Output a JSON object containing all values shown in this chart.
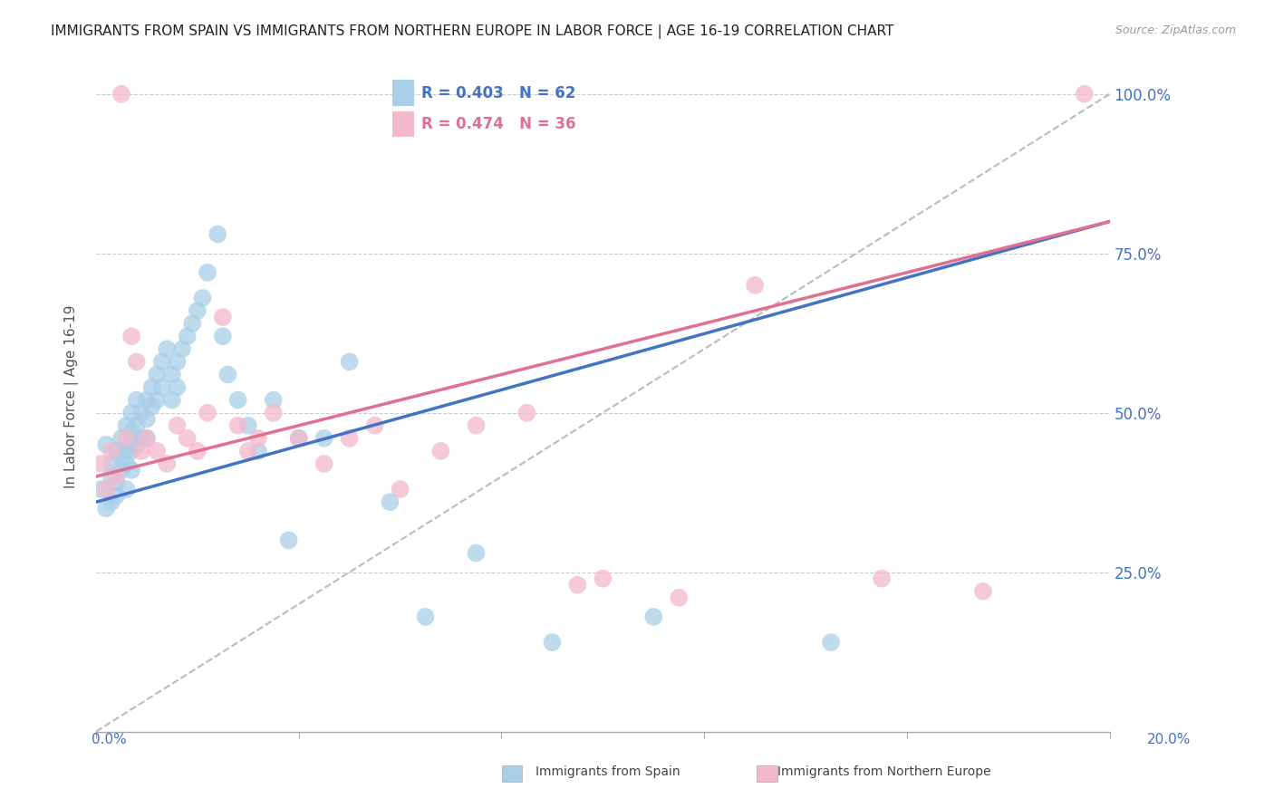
{
  "title": "IMMIGRANTS FROM SPAIN VS IMMIGRANTS FROM NORTHERN EUROPE IN LABOR FORCE | AGE 16-19 CORRELATION CHART",
  "source": "Source: ZipAtlas.com",
  "ylabel": "In Labor Force | Age 16-19",
  "legend_blue_r": "R = 0.403",
  "legend_blue_n": "N = 62",
  "legend_pink_r": "R = 0.474",
  "legend_pink_n": "N = 36",
  "legend_label_blue": "Immigrants from Spain",
  "legend_label_pink": "Immigrants from Northern Europe",
  "blue_color": "#a8cfe8",
  "pink_color": "#f4b8cb",
  "trend_blue": "#4472c4",
  "trend_pink": "#e07090",
  "dashed_gray": "#bbbbbb",
  "axis_color": "#4472c4",
  "background": "#ffffff",
  "xmin": 0.0,
  "xmax": 0.2,
  "ymin": 0.0,
  "ymax": 1.05,
  "blue_scatter_x": [
    0.001,
    0.002,
    0.002,
    0.003,
    0.003,
    0.003,
    0.004,
    0.004,
    0.004,
    0.005,
    0.005,
    0.005,
    0.006,
    0.006,
    0.006,
    0.006,
    0.007,
    0.007,
    0.007,
    0.007,
    0.008,
    0.008,
    0.008,
    0.009,
    0.009,
    0.01,
    0.01,
    0.01,
    0.011,
    0.011,
    0.012,
    0.012,
    0.013,
    0.013,
    0.014,
    0.015,
    0.015,
    0.016,
    0.016,
    0.017,
    0.018,
    0.019,
    0.02,
    0.021,
    0.022,
    0.024,
    0.025,
    0.026,
    0.028,
    0.03,
    0.032,
    0.035,
    0.038,
    0.04,
    0.045,
    0.05,
    0.058,
    0.065,
    0.075,
    0.09,
    0.11,
    0.145
  ],
  "blue_scatter_y": [
    0.38,
    0.45,
    0.35,
    0.42,
    0.36,
    0.4,
    0.44,
    0.39,
    0.37,
    0.43,
    0.46,
    0.41,
    0.48,
    0.44,
    0.42,
    0.38,
    0.5,
    0.47,
    0.44,
    0.41,
    0.52,
    0.48,
    0.45,
    0.5,
    0.46,
    0.52,
    0.49,
    0.46,
    0.54,
    0.51,
    0.56,
    0.52,
    0.58,
    0.54,
    0.6,
    0.56,
    0.52,
    0.58,
    0.54,
    0.6,
    0.62,
    0.64,
    0.66,
    0.68,
    0.72,
    0.78,
    0.62,
    0.56,
    0.52,
    0.48,
    0.44,
    0.52,
    0.3,
    0.46,
    0.46,
    0.58,
    0.36,
    0.18,
    0.28,
    0.14,
    0.18,
    0.14
  ],
  "pink_scatter_x": [
    0.001,
    0.002,
    0.003,
    0.004,
    0.005,
    0.006,
    0.007,
    0.008,
    0.009,
    0.01,
    0.012,
    0.014,
    0.016,
    0.018,
    0.02,
    0.022,
    0.025,
    0.028,
    0.03,
    0.032,
    0.035,
    0.04,
    0.045,
    0.05,
    0.055,
    0.06,
    0.068,
    0.075,
    0.085,
    0.095,
    0.1,
    0.115,
    0.13,
    0.155,
    0.175,
    0.195
  ],
  "pink_scatter_y": [
    0.42,
    0.38,
    0.44,
    0.4,
    1.0,
    0.46,
    0.62,
    0.58,
    0.44,
    0.46,
    0.44,
    0.42,
    0.48,
    0.46,
    0.44,
    0.5,
    0.65,
    0.48,
    0.44,
    0.46,
    0.5,
    0.46,
    0.42,
    0.46,
    0.48,
    0.38,
    0.44,
    0.48,
    0.5,
    0.23,
    0.24,
    0.21,
    0.7,
    0.24,
    0.22,
    1.0
  ],
  "blue_trend_x0": 0.0,
  "blue_trend_y0": 0.36,
  "blue_trend_x1": 0.2,
  "blue_trend_y1": 0.8,
  "pink_trend_x0": 0.0,
  "pink_trend_y0": 0.4,
  "pink_trend_x1": 0.2,
  "pink_trend_y1": 0.8,
  "ref_line_x0": 0.0,
  "ref_line_y0": 0.0,
  "ref_line_x1": 0.2,
  "ref_line_y1": 1.0,
  "ytick_vals": [
    0.25,
    0.5,
    0.75,
    1.0
  ],
  "ytick_labels": [
    "25.0%",
    "50.0%",
    "75.0%",
    "100.0%"
  ]
}
